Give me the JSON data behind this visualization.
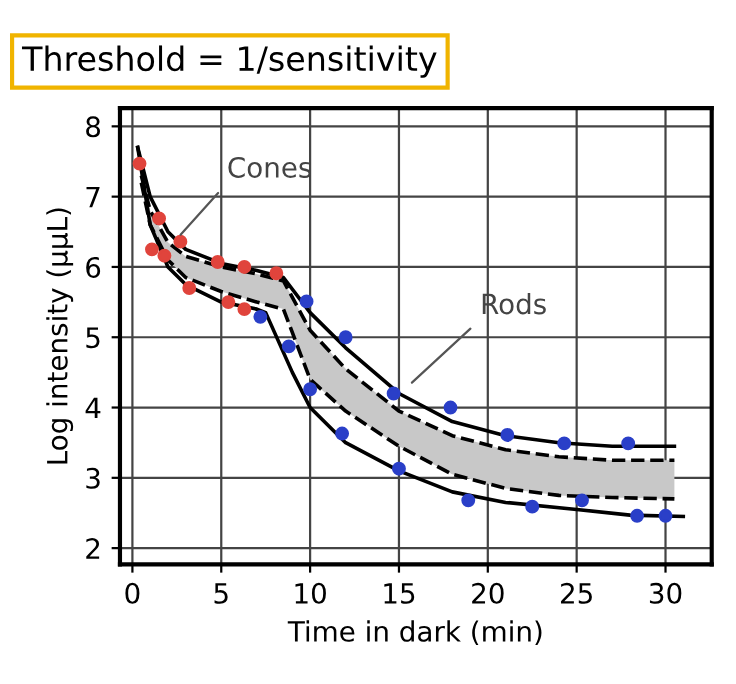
{
  "chart_data": {
    "type": "line",
    "title": "Threshold = 1/sensitivity",
    "xlabel": "Time in dark (min)",
    "ylabel": "Log intensity (μμL)",
    "xlim": [
      -0.7,
      32.6
    ],
    "ylim": [
      1.77,
      8.26
    ],
    "xticks": [
      0,
      5,
      10,
      15,
      20,
      25,
      30
    ],
    "yticks": [
      2,
      3,
      4,
      5,
      6,
      7,
      8
    ],
    "grid": true,
    "legend": false,
    "series": [
      {
        "color": "#000000",
        "line_style": "solid",
        "x": [
          0.3,
          1,
          2,
          3,
          5,
          7,
          8.5,
          10,
          12,
          15,
          18,
          21,
          24,
          27,
          30.5
        ],
        "values": [
          7.7,
          7.0,
          6.5,
          6.25,
          6.05,
          5.95,
          5.85,
          5.35,
          4.85,
          4.2,
          3.8,
          3.6,
          3.5,
          3.45,
          3.45
        ]
      },
      {
        "color": "#000000",
        "line_style": "solid",
        "x": [
          0.3,
          1,
          2,
          3,
          5,
          7,
          7.5,
          9,
          10,
          12,
          15,
          18,
          21,
          25,
          28,
          31
        ],
        "values": [
          7.7,
          6.6,
          6.0,
          5.75,
          5.5,
          5.4,
          5.35,
          4.5,
          4.0,
          3.5,
          3.1,
          2.8,
          2.65,
          2.55,
          2.47,
          2.45
        ]
      },
      {
        "color": "#000000",
        "line_style": "dashed",
        "x": [
          0.5,
          1,
          2,
          3,
          5,
          7,
          8.5,
          10,
          12,
          15,
          18,
          21,
          24,
          27,
          30.5
        ],
        "values": [
          7.3,
          6.8,
          6.35,
          6.15,
          6.0,
          5.9,
          5.8,
          5.1,
          4.55,
          3.95,
          3.6,
          3.4,
          3.3,
          3.25,
          3.25
        ],
        "upper": [
          7.3,
          6.8,
          6.35,
          6.15,
          6.0,
          5.9,
          5.8,
          5.1,
          4.55,
          3.95,
          3.6,
          3.4,
          3.3,
          3.25,
          3.25
        ],
        "lower": [
          7.2,
          6.6,
          6.1,
          5.85,
          5.65,
          5.5,
          5.4,
          4.4,
          3.95,
          3.45,
          3.05,
          2.85,
          2.75,
          2.72,
          2.7
        ]
      },
      {
        "color": "#000000",
        "line_style": "dashed",
        "x": [
          0.5,
          1,
          2,
          3,
          5,
          7,
          8.5,
          10,
          12,
          15,
          18,
          21,
          24,
          27,
          30.5
        ],
        "values": [
          7.2,
          6.6,
          6.1,
          5.85,
          5.65,
          5.5,
          5.4,
          4.4,
          3.95,
          3.45,
          3.05,
          2.85,
          2.75,
          2.72,
          2.7
        ]
      },
      {
        "type": "scatter",
        "color": "#e0443c",
        "marker": "circle",
        "x": [
          0.4,
          1.5,
          1.1,
          1.8,
          2.7,
          3.2,
          4.8,
          5.4,
          6.3,
          6.3,
          8.1
        ],
        "values": [
          7.47,
          6.69,
          6.25,
          6.16,
          6.36,
          5.7,
          6.07,
          5.5,
          6.0,
          5.4,
          5.91
        ]
      },
      {
        "type": "scatter",
        "color": "#2a3fc8",
        "marker": "circle",
        "x": [
          7.2,
          8.8,
          9.8,
          12.0,
          10.0,
          11.8,
          14.7,
          17.9,
          21.1,
          24.3,
          27.9,
          15.0,
          18.9,
          22.5,
          25.3,
          28.4,
          30.0
        ],
        "values": [
          5.29,
          4.87,
          5.51,
          5.0,
          4.26,
          3.63,
          4.2,
          4.0,
          3.61,
          3.49,
          3.49,
          3.13,
          2.68,
          2.59,
          2.68,
          2.46,
          2.46
        ]
      }
    ],
    "annotations": [
      {
        "text": "Cones",
        "x": 2.5,
        "y": 6.4
      },
      {
        "text": "Rods",
        "x": 15.5,
        "y": 4.3
      }
    ]
  }
}
